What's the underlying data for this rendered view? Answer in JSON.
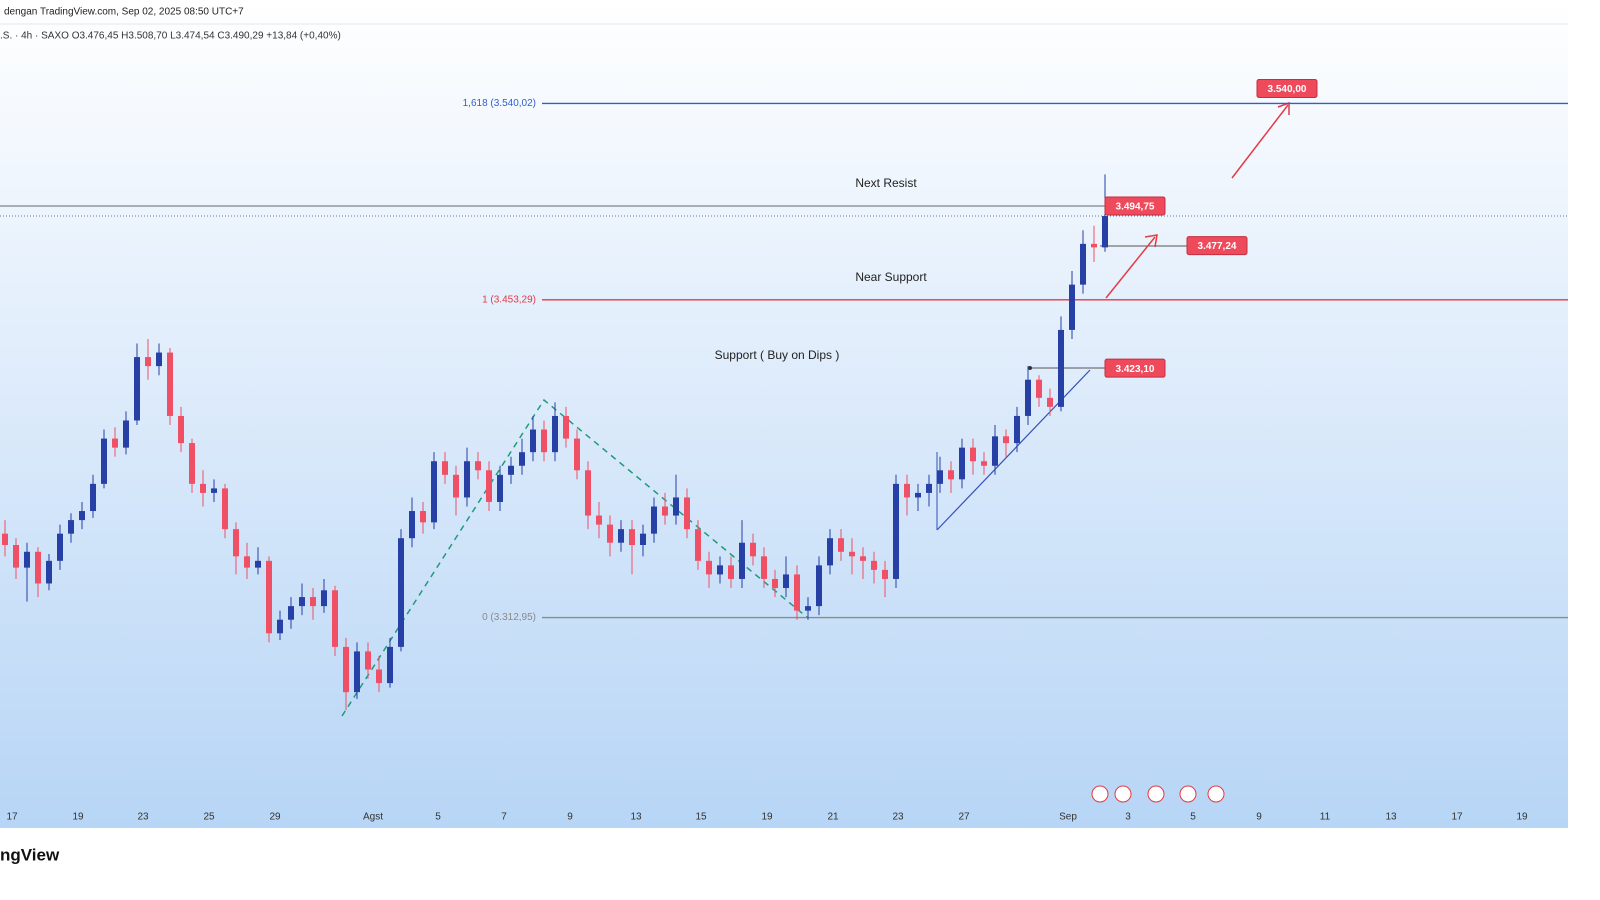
{
  "header": {
    "source": "dengan TradingView.com, Sep 02, 2025 08:50 UTC+7",
    "ohlc": ".S. · 4h · SAXO  O3.476,45  H3.508,70  L3.474,54  C3.490,29  +13,84 (+0,40%)"
  },
  "footer": "ngView",
  "chart_data": {
    "type": "candlestick",
    "up_color": "#2740a6",
    "down_color": "#ef5066",
    "ylim": [
      3220,
      3576
    ],
    "xticks": [
      "17",
      "19",
      "23",
      "25",
      "29",
      "Agst",
      "5",
      "7",
      "9",
      "13",
      "15",
      "19",
      "21",
      "23",
      "27",
      "Sep",
      "3",
      "5",
      "9",
      "11",
      "13",
      "17",
      "19"
    ],
    "levels": [
      {
        "label": "1,618 (3.540,02)",
        "value": 3540.02,
        "color": "#2f5fd0"
      },
      {
        "label": "1 (3.453,29)",
        "value": 3453.29,
        "color": "#e53945"
      },
      {
        "label": "0 (3.312,95)",
        "value": 3312.95,
        "color": "#8a8a8a"
      }
    ],
    "price_tags": [
      {
        "label": "3.540,00",
        "value": 3540.0
      },
      {
        "label": "3.494,75",
        "value": 3494.75
      },
      {
        "label": "3.477,24",
        "value": 3477.24
      },
      {
        "label": "3.423,10",
        "value": 3423.1
      }
    ],
    "annotations": [
      "Next Resist",
      "Near Support",
      "Support ( Buy on Dips )"
    ],
    "candles": [
      [
        3350,
        3356,
        3340,
        3345
      ],
      [
        3345,
        3348,
        3330,
        3335
      ],
      [
        3335,
        3346,
        3320,
        3342
      ],
      [
        3342,
        3344,
        3322,
        3328
      ],
      [
        3328,
        3341,
        3325,
        3338
      ],
      [
        3338,
        3354,
        3334,
        3350
      ],
      [
        3350,
        3359,
        3346,
        3356
      ],
      [
        3356,
        3364,
        3352,
        3360
      ],
      [
        3360,
        3376,
        3357,
        3372
      ],
      [
        3372,
        3396,
        3370,
        3392
      ],
      [
        3392,
        3397,
        3384,
        3388
      ],
      [
        3388,
        3404,
        3385,
        3400
      ],
      [
        3400,
        3434,
        3398,
        3428
      ],
      [
        3428,
        3436,
        3418,
        3424
      ],
      [
        3424,
        3434,
        3420,
        3430
      ],
      [
        3430,
        3432,
        3398,
        3402
      ],
      [
        3402,
        3406,
        3386,
        3390
      ],
      [
        3390,
        3392,
        3368,
        3372
      ],
      [
        3372,
        3378,
        3362,
        3368
      ],
      [
        3368,
        3374,
        3364,
        3370
      ],
      [
        3370,
        3372,
        3348,
        3352
      ],
      [
        3352,
        3355,
        3332,
        3340
      ],
      [
        3340,
        3346,
        3330,
        3335
      ],
      [
        3335,
        3344,
        3332,
        3338
      ],
      [
        3338,
        3340,
        3302,
        3306
      ],
      [
        3306,
        3316,
        3303,
        3312
      ],
      [
        3312,
        3322,
        3308,
        3318
      ],
      [
        3318,
        3328,
        3314,
        3322
      ],
      [
        3322,
        3326,
        3312,
        3318
      ],
      [
        3318,
        3330,
        3315,
        3325
      ],
      [
        3325,
        3327,
        3296,
        3300
      ],
      [
        3300,
        3304,
        3272,
        3280
      ],
      [
        3280,
        3302,
        3277,
        3298
      ],
      [
        3298,
        3302,
        3286,
        3290
      ],
      [
        3290,
        3296,
        3280,
        3284
      ],
      [
        3284,
        3304,
        3282,
        3300
      ],
      [
        3300,
        3352,
        3298,
        3348
      ],
      [
        3348,
        3366,
        3344,
        3360
      ],
      [
        3360,
        3364,
        3350,
        3355
      ],
      [
        3355,
        3386,
        3352,
        3382
      ],
      [
        3382,
        3386,
        3372,
        3376
      ],
      [
        3376,
        3380,
        3358,
        3366
      ],
      [
        3366,
        3388,
        3362,
        3382
      ],
      [
        3382,
        3386,
        3374,
        3378
      ],
      [
        3378,
        3382,
        3360,
        3364
      ],
      [
        3364,
        3380,
        3360,
        3376
      ],
      [
        3376,
        3384,
        3372,
        3380
      ],
      [
        3380,
        3392,
        3376,
        3386
      ],
      [
        3386,
        3402,
        3382,
        3396
      ],
      [
        3396,
        3400,
        3382,
        3386
      ],
      [
        3386,
        3408,
        3382,
        3402
      ],
      [
        3402,
        3406,
        3388,
        3392
      ],
      [
        3392,
        3396,
        3374,
        3378
      ],
      [
        3378,
        3382,
        3352,
        3358
      ],
      [
        3358,
        3364,
        3348,
        3354
      ],
      [
        3354,
        3358,
        3340,
        3346
      ],
      [
        3346,
        3356,
        3342,
        3352
      ],
      [
        3352,
        3356,
        3332,
        3345
      ],
      [
        3345,
        3354,
        3340,
        3350
      ],
      [
        3350,
        3366,
        3346,
        3362
      ],
      [
        3362,
        3368,
        3354,
        3358
      ],
      [
        3358,
        3376,
        3354,
        3366
      ],
      [
        3366,
        3370,
        3348,
        3352
      ],
      [
        3352,
        3356,
        3334,
        3338
      ],
      [
        3338,
        3342,
        3326,
        3332
      ],
      [
        3332,
        3340,
        3328,
        3336
      ],
      [
        3336,
        3340,
        3326,
        3330
      ],
      [
        3330,
        3356,
        3326,
        3346
      ],
      [
        3346,
        3350,
        3336,
        3340
      ],
      [
        3340,
        3344,
        3326,
        3330
      ],
      [
        3330,
        3334,
        3322,
        3326
      ],
      [
        3326,
        3340,
        3322,
        3332
      ],
      [
        3332,
        3336,
        3312,
        3316
      ],
      [
        3316,
        3322,
        3312,
        3318
      ],
      [
        3318,
        3340,
        3314,
        3336
      ],
      [
        3336,
        3352,
        3332,
        3348
      ],
      [
        3348,
        3352,
        3338,
        3342
      ],
      [
        3342,
        3348,
        3332,
        3340
      ],
      [
        3340,
        3344,
        3330,
        3338
      ],
      [
        3338,
        3342,
        3328,
        3334
      ],
      [
        3334,
        3338,
        3322,
        3330
      ],
      [
        3330,
        3376,
        3326,
        3372
      ],
      [
        3372,
        3376,
        3358,
        3366
      ],
      [
        3366,
        3372,
        3360,
        3368
      ],
      [
        3368,
        3376,
        3362,
        3372
      ],
      [
        3372,
        3384,
        3368,
        3378
      ],
      [
        3378,
        3382,
        3368,
        3374
      ],
      [
        3374,
        3392,
        3370,
        3388
      ],
      [
        3388,
        3392,
        3376,
        3382
      ],
      [
        3382,
        3386,
        3376,
        3380
      ],
      [
        3380,
        3398,
        3376,
        3393
      ],
      [
        3393,
        3396,
        3384,
        3390
      ],
      [
        3390,
        3406,
        3386,
        3402
      ],
      [
        3402,
        3424,
        3398,
        3418
      ],
      [
        3418,
        3420,
        3406,
        3410
      ],
      [
        3410,
        3414,
        3402,
        3406
      ],
      [
        3406,
        3446,
        3404,
        3440
      ],
      [
        3440,
        3466,
        3436,
        3460
      ],
      [
        3460,
        3484,
        3456,
        3478
      ],
      [
        3478,
        3486,
        3470,
        3476.45
      ],
      [
        3476.45,
        3508.7,
        3474.54,
        3490.29
      ]
    ]
  }
}
